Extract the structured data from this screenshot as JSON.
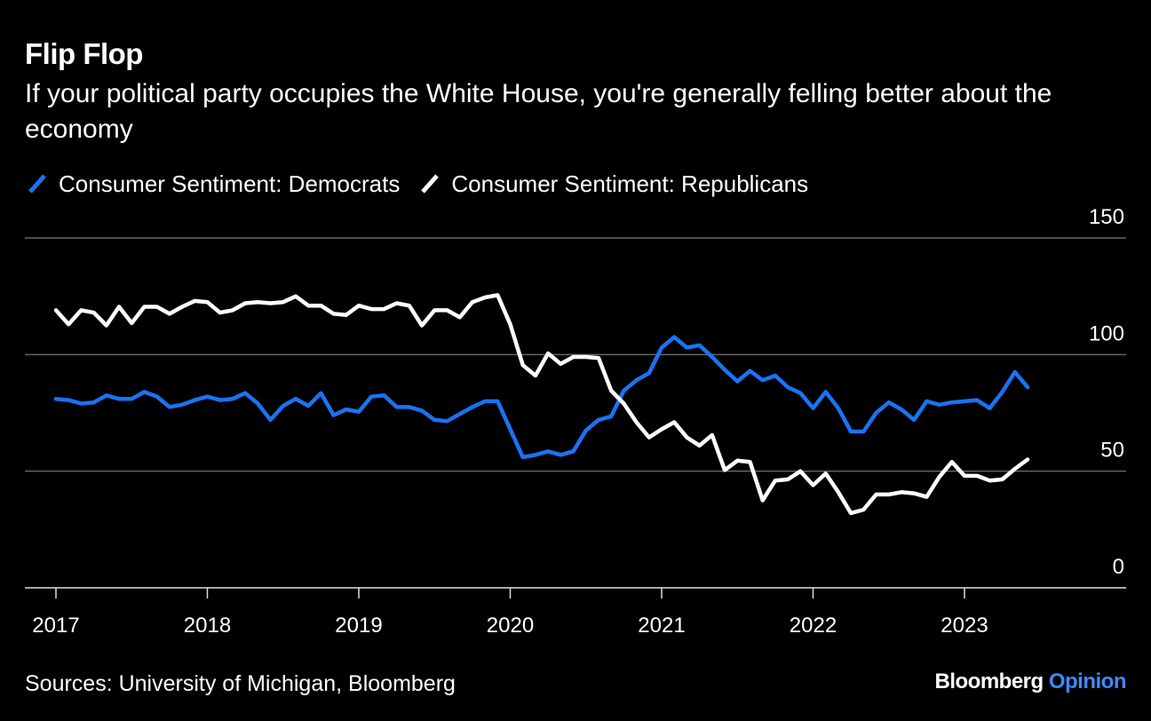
{
  "colors": {
    "background": "#000000",
    "democrats": "#1a73f5",
    "republicans": "#ffffff",
    "grid": "#666666"
  },
  "brand": {
    "name": "Bloomberg",
    "suffix": "Opinion",
    "suffix_color": "#3d8bff"
  },
  "source": "Sources: University of Michigan, Bloomberg",
  "chart_data": {
    "type": "line",
    "title": "Flip Flop",
    "subtitle": "If your political party occupies the White House, you're generally felling better about the economy",
    "xlabel": "",
    "ylabel": "",
    "ylim": [
      0,
      150
    ],
    "xlim": [
      2017.0,
      2024.0
    ],
    "yticks": [
      0,
      50,
      100,
      150
    ],
    "ytick_labels": [
      "0",
      "50",
      "100",
      "150"
    ],
    "xtick_labels": [
      "2017",
      "2018",
      "2019",
      "2020",
      "2021",
      "2022",
      "2023"
    ],
    "grid": true,
    "y_axis_position": "right",
    "legend_position": "top-left",
    "x_start": "2017-01",
    "x_step_months": 1,
    "series": [
      {
        "name": "Consumer Sentiment: Democrats",
        "color": "#1a73f5",
        "values": [
          81,
          80.5,
          79,
          79.5,
          82.5,
          81,
          81,
          84,
          82,
          77.5,
          78.5,
          80.5,
          82,
          80.5,
          81,
          83.5,
          79,
          72,
          78,
          81,
          78,
          83.5,
          74,
          76.5,
          75.5,
          82,
          82.5,
          77.5,
          77.5,
          76,
          72,
          71.5,
          74.5,
          77.5,
          80,
          80,
          68,
          56,
          57,
          58.5,
          57,
          58.5,
          67.5,
          72,
          73.5,
          84.5,
          89,
          92,
          103,
          107.5,
          103,
          104,
          99,
          93.5,
          88.5,
          93,
          89,
          91,
          86,
          83.5,
          77,
          84,
          77,
          67,
          67,
          75,
          79.5,
          76.5,
          72,
          80,
          78.5,
          79.5,
          80,
          80.5,
          77,
          84,
          92.5,
          86
        ]
      },
      {
        "name": "Consumer Sentiment: Republicans",
        "color": "#ffffff",
        "values": [
          119,
          113,
          119,
          118,
          112.5,
          120.5,
          113.5,
          120.5,
          120.5,
          117.5,
          120.5,
          123,
          122.5,
          118,
          119,
          122,
          122.5,
          122,
          122.5,
          125,
          121,
          121,
          117.5,
          117,
          121,
          119.5,
          119.5,
          122,
          121,
          112.5,
          119,
          119,
          116,
          122.5,
          124.5,
          125.5,
          113,
          95.5,
          91,
          100.5,
          96,
          99,
          99,
          98.5,
          84.5,
          79,
          71,
          64.5,
          68,
          71,
          64.5,
          61,
          65.5,
          50.5,
          54.5,
          54,
          37.5,
          46,
          46.5,
          50,
          44,
          49,
          41,
          32,
          33.5,
          40,
          40,
          41,
          40.5,
          39,
          47.5,
          54,
          48,
          48,
          46,
          46.5,
          51,
          55
        ]
      }
    ]
  }
}
